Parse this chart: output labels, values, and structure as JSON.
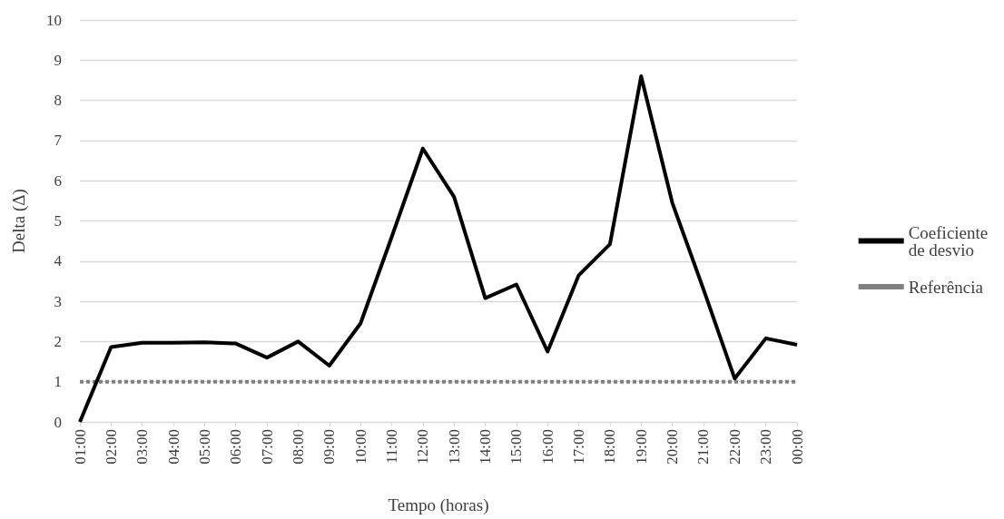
{
  "chart_data": {
    "type": "line",
    "xlabel": "Tempo (horas)",
    "ylabel": "Delta (Δ)",
    "categories": [
      "01:00",
      "02:00",
      "03:00",
      "04:00",
      "05:00",
      "06:00",
      "07:00",
      "08:00",
      "09:00",
      "10:00",
      "11:00",
      "12:00",
      "13:00",
      "14:00",
      "15:00",
      "16:00",
      "17:00",
      "18:00",
      "19:00",
      "20:00",
      "21:00",
      "22:00",
      "23:00",
      "00:00"
    ],
    "series": [
      {
        "name": "Coeficiente de desvio",
        "color": "#000000",
        "line_style": "solid",
        "values": [
          0,
          1.86,
          1.97,
          1.97,
          1.98,
          1.95,
          1.6,
          2.0,
          1.4,
          2.45,
          4.6,
          6.8,
          5.6,
          3.08,
          3.42,
          1.75,
          3.65,
          4.42,
          8.6,
          5.45,
          3.3,
          1.08,
          2.08,
          1.92
        ]
      },
      {
        "name": "Referência",
        "color": "#808080",
        "line_style": "dashed",
        "values": [
          1,
          1,
          1,
          1,
          1,
          1,
          1,
          1,
          1,
          1,
          1,
          1,
          1,
          1,
          1,
          1,
          1,
          1,
          1,
          1,
          1,
          1,
          1,
          1
        ]
      }
    ],
    "ylim": [
      0,
      10
    ],
    "yticks": [
      0,
      1,
      2,
      3,
      4,
      5,
      6,
      7,
      8,
      9,
      10
    ],
    "grid": "y",
    "legend": "right",
    "marker": "none"
  }
}
